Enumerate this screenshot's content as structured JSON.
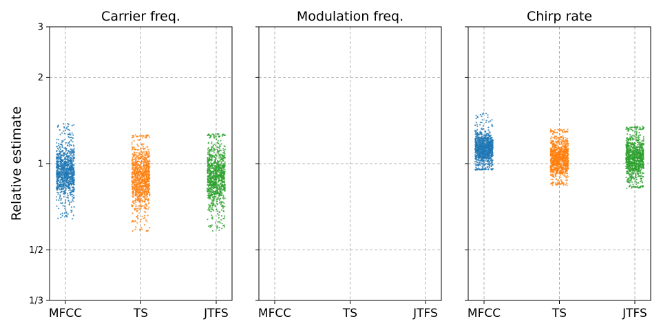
{
  "chart_data": {
    "type": "scatter",
    "style": "jittered strip plot",
    "ylabel": "Relative estimate",
    "yscale": "log",
    "ylim": [
      0.3333,
      3
    ],
    "yticks": [
      0.3333,
      0.5,
      1,
      2,
      3
    ],
    "yticklabels": [
      "1/3",
      "1/2",
      "1",
      "2",
      "3"
    ],
    "grid": true,
    "category_colors": {
      "MFCC": "#1f77b4",
      "TS": "#ff7f0e",
      "JTFS": "#2ca02c"
    },
    "panels": [
      {
        "title": "Carrier freq.",
        "categories": [
          "MFCC",
          "TS",
          "JTFS"
        ],
        "series": [
          {
            "category": "MFCC",
            "core_range": [
              0.72,
              1.22
            ],
            "full_range": [
              0.64,
              1.38
            ]
          },
          {
            "category": "TS",
            "core_range": [
              0.66,
              1.23
            ],
            "full_range": [
              0.58,
              1.26
            ]
          },
          {
            "category": "JTFS",
            "core_range": [
              0.66,
              1.24
            ],
            "full_range": [
              0.58,
              1.27
            ]
          }
        ]
      },
      {
        "title": "Modulation freq.",
        "categories": [
          "MFCC",
          "TS",
          "JTFS"
        ],
        "series": []
      },
      {
        "title": "Chirp rate",
        "categories": [
          "MFCC",
          "TS",
          "JTFS"
        ],
        "series": [
          {
            "category": "MFCC",
            "core_range": [
              0.96,
              1.33
            ],
            "full_range": [
              0.95,
              1.5
            ]
          },
          {
            "category": "TS",
            "core_range": [
              0.86,
              1.28
            ],
            "full_range": [
              0.84,
              1.32
            ]
          },
          {
            "category": "JTFS",
            "core_range": [
              0.84,
              1.31
            ],
            "full_range": [
              0.82,
              1.35
            ]
          }
        ]
      }
    ]
  }
}
